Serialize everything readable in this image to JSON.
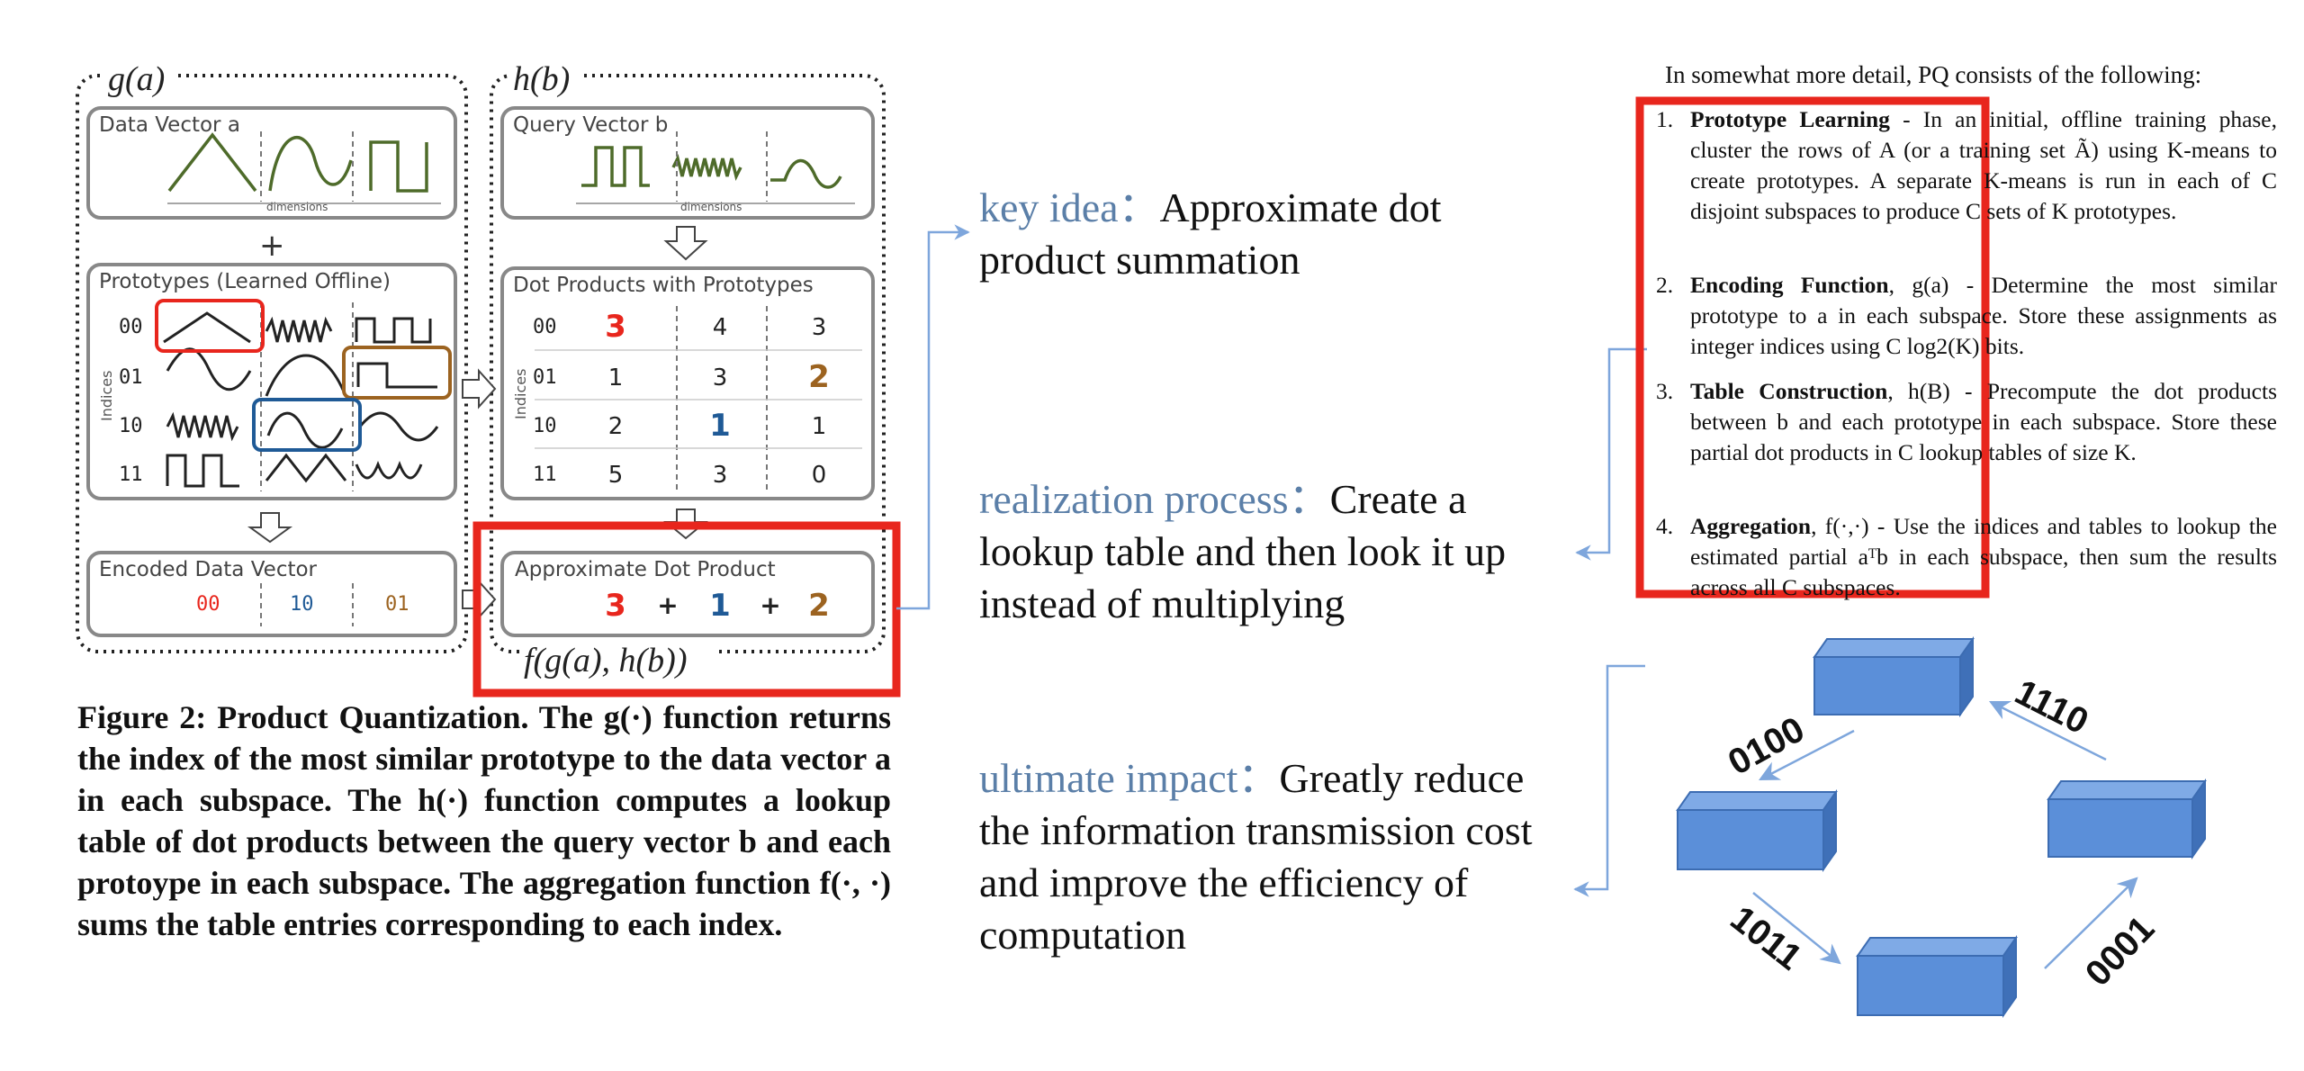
{
  "figure": {
    "g_label": "g(a)",
    "h_label": "h(b)",
    "f_label": "f(g(a), h(b))",
    "data_vector": {
      "title": "Data Vector a",
      "dimensions": "dimensions"
    },
    "plus": "+",
    "prototypes": {
      "title": "Prototypes (Learned Offline)",
      "axis": "Indices",
      "rows": [
        "00",
        "01",
        "10",
        "11"
      ]
    },
    "encoded": {
      "title": "Encoded Data Vector",
      "codes": [
        "00",
        "10",
        "01"
      ]
    },
    "query_vector": {
      "title": "Query Vector b",
      "dimensions": "dimensions"
    },
    "dot_products": {
      "title": "Dot Products with Prototypes",
      "axis": "Indices",
      "rows": [
        {
          "idx": "00",
          "vals": [
            "3",
            "4",
            "3"
          ]
        },
        {
          "idx": "01",
          "vals": [
            "1",
            "3",
            "2"
          ]
        },
        {
          "idx": "10",
          "vals": [
            "2",
            "1",
            "1"
          ]
        },
        {
          "idx": "11",
          "vals": [
            "5",
            "3",
            "0"
          ]
        }
      ]
    },
    "approx": {
      "title": "Approximate Dot Product",
      "terms": [
        "3",
        "+",
        "1",
        "+",
        "2"
      ]
    },
    "caption": "Figure 2: Product Quantization. The g(·) function returns the index of the most similar prototype to the data vector a in each subspace. The h(·) function computes a lookup table of dot products between the query vector b and each protoype in each subspace. The aggregation function f(·, ·) sums the table entries corresponding to each index."
  },
  "middle": {
    "key_idea_label": "key idea：",
    "key_idea_text": "Approximate dot product summation",
    "realization_label": "realization process：",
    "realization_text": "Create a lookup table and then look it up instead of multiplying",
    "impact_label": "ultimate impact：",
    "impact_text": "Greatly reduce the information transmission cost and improve the efficiency of computation"
  },
  "pq": {
    "intro": "In somewhat more detail, PQ consists of the following:",
    "items": [
      {
        "num": "1.",
        "title": "Prototype Learning",
        "text": " - In an initial, offline training phase, cluster the rows of A (or a training set Ã) using K-means to create prototypes. A separate K-means is run in each of C disjoint subspaces to produce C sets of K prototypes."
      },
      {
        "num": "2.",
        "title": "Encoding Function",
        "text": ", g(a) - Determine the most similar prototype to a in each subspace. Store these assignments as integer indices using C log2(K) bits."
      },
      {
        "num": "3.",
        "title": "Table Construction",
        "text": ", h(B) - Precompute the dot products between b and each prototype in each subspace. Store these partial dot products in C lookup tables of size K."
      },
      {
        "num": "4.",
        "title": "Aggregation",
        "text": ", f(·,·) - Use the indices and tables to lookup the estimated partial aᵀb in each subspace, then sum the results across all C subspaces."
      }
    ]
  },
  "cycle": {
    "labels": [
      "0100",
      "1110",
      "1011",
      "0001"
    ]
  },
  "colors": {
    "red": "#e8261d",
    "blue": "#1f5a96",
    "brown": "#9c6320",
    "box_blue": "#5b8fd9",
    "arrow_blue": "#7ea6dc"
  }
}
